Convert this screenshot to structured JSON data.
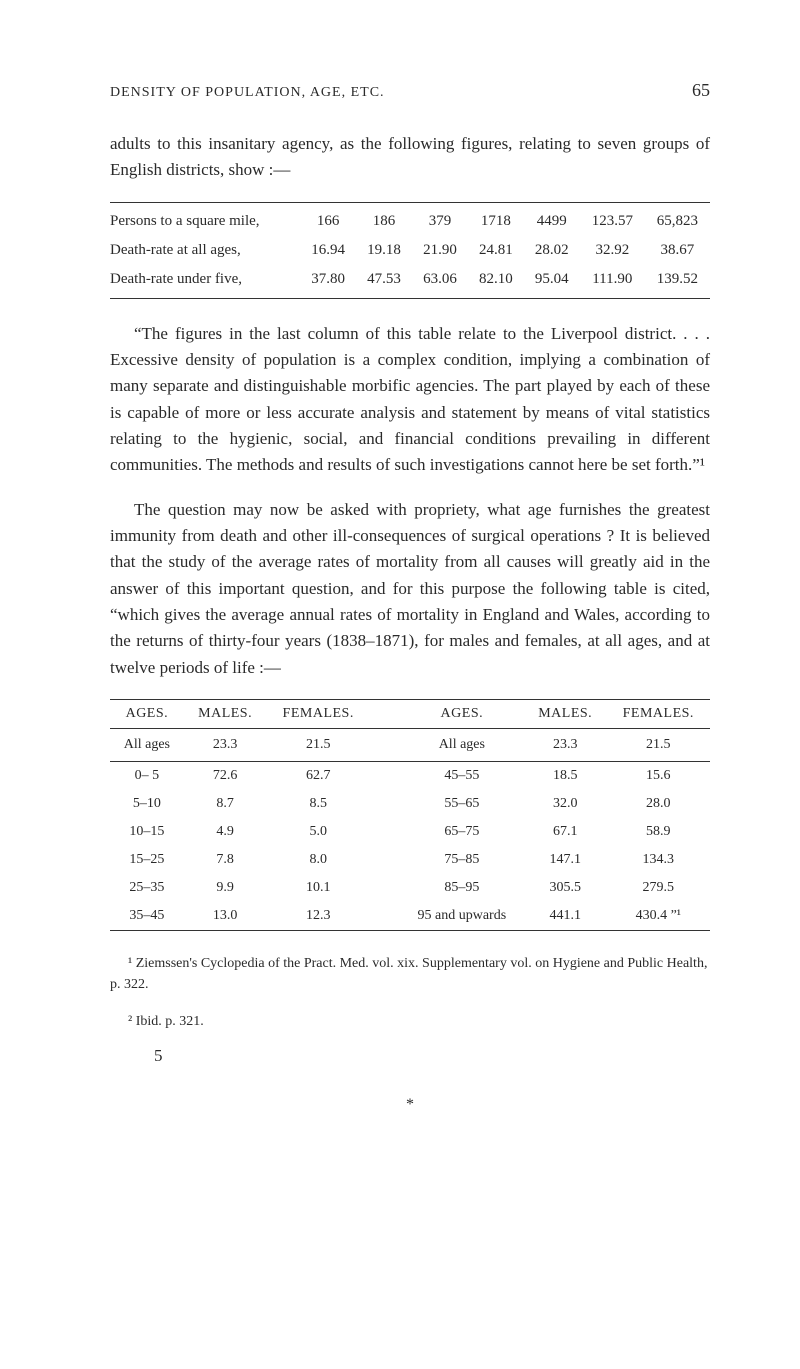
{
  "header": {
    "running_head": "DENSITY OF POPULATION, AGE, ETC.",
    "page_number": "65"
  },
  "para1": "adults to this insanitary agency, as the following figures, relating to seven groups of English districts, show :—",
  "table1": {
    "rows": [
      {
        "label": "Persons to a square mile,",
        "c": [
          "166",
          "186",
          "379",
          "1718",
          "4499",
          "123.57",
          "65,823"
        ]
      },
      {
        "label": "Death-rate at all ages,",
        "c": [
          "16.94",
          "19.18",
          "21.90",
          "24.81",
          "28.02",
          "32.92",
          "38.67"
        ]
      },
      {
        "label": "Death-rate under five,",
        "c": [
          "37.80",
          "47.53",
          "63.06",
          "82.10",
          "95.04",
          "111.90",
          "139.52"
        ]
      }
    ],
    "label_font_size": 15,
    "value_font_size": 15
  },
  "para2": "“The figures in the last column of this table relate to the Liver­pool district. . . . Excessive density of population is a com­plex condition, implying a combination of many separate and distinguishable morbific agencies. The part played by each of these is capable of more or less accurate analysis and statement by means of vital statistics relating to the hygienic, social, and finan­cial conditions prevailing in different communities. The methods and results of such investigations cannot here be set forth.”¹",
  "para3": "The question may now be asked with propriety, what age furnishes the greatest immunity from death and other ill-conse­quences of surgical operations ? It is believed that the study of the average rates of mortality from all causes will greatly aid in the answer of this important question, and for this purpose the following table is cited, “which gives the average annual rates of mortality in England and Wales, according to the returns of thirty-four years (1838–1871), for males and females, at all ages, and at twelve periods of life :—",
  "table2": {
    "headers": [
      "AGES.",
      "MALES.",
      "FEMALES.",
      "AGES.",
      "MALES.",
      "FEMALES."
    ],
    "subhead": [
      "All ages",
      "23.3",
      "21.5",
      "All ages",
      "23.3",
      "21.5"
    ],
    "rows": [
      [
        "0– 5",
        "72.6",
        "62.7",
        "45–55",
        "18.5",
        "15.6"
      ],
      [
        "5–10",
        "8.7",
        "8.5",
        "55–65",
        "32.0",
        "28.0"
      ],
      [
        "10–15",
        "4.9",
        "5.0",
        "65–75",
        "67.1",
        "58.9"
      ],
      [
        "15–25",
        "7.8",
        "8.0",
        "75–85",
        "147.1",
        "134.3"
      ],
      [
        "25–35",
        "9.9",
        "10.1",
        "85–95",
        "305.5",
        "279.5"
      ],
      [
        "35–45",
        "13.0",
        "12.3",
        "95 and upwards",
        "441.1",
        "430.4 ”¹"
      ]
    ]
  },
  "footnotes": {
    "fn1": "¹ Ziemssen's Cyclopedia of the Pract. Med. vol. xix. Supplementary vol. on Hygiene and Public Health, p. 322.",
    "fn2": "² Ibid. p. 321."
  },
  "sig": "5",
  "asterisk": "*",
  "colors": {
    "text": "#2a2a2a",
    "background": "#ffffff",
    "rule": "#333333"
  }
}
